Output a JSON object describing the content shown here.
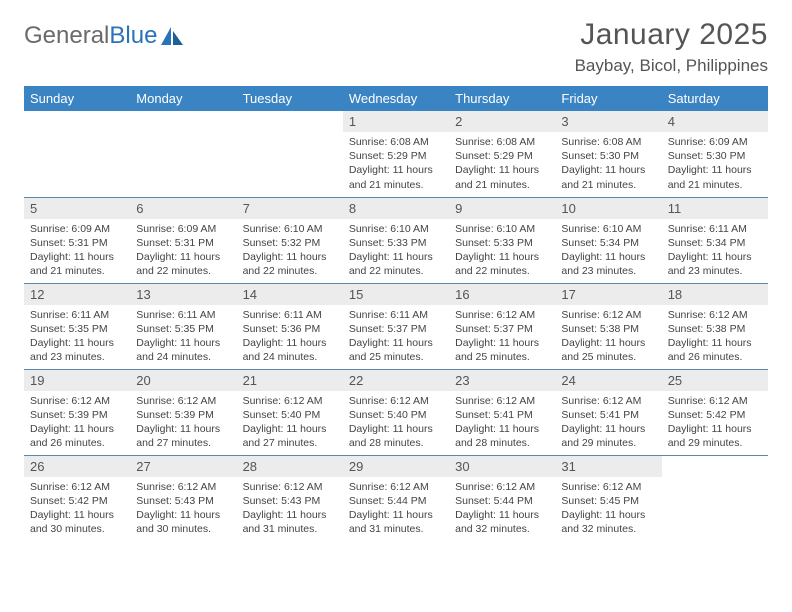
{
  "logo": {
    "text_gray": "General",
    "text_blue": "Blue"
  },
  "title": "January 2025",
  "location": "Baybay, Bicol, Philippines",
  "colors": {
    "header_bg": "#3b84c4",
    "header_text": "#ffffff",
    "daynum_bg": "#ececec",
    "border": "#5a87a8",
    "title_color": "#555555",
    "body_text": "#444444",
    "logo_gray": "#6a6a6a",
    "logo_blue": "#2a73b8",
    "page_bg": "#ffffff"
  },
  "typography": {
    "title_fontsize": 30,
    "location_fontsize": 17,
    "dayheader_fontsize": 13,
    "daynum_fontsize": 13,
    "body_fontsize": 10.5,
    "logo_fontsize": 24
  },
  "day_headers": [
    "Sunday",
    "Monday",
    "Tuesday",
    "Wednesday",
    "Thursday",
    "Friday",
    "Saturday"
  ],
  "weeks": [
    [
      {
        "empty": true
      },
      {
        "empty": true
      },
      {
        "empty": true
      },
      {
        "num": "1",
        "sunrise": "6:08 AM",
        "sunset": "5:29 PM",
        "daylight": "11 hours and 21 minutes."
      },
      {
        "num": "2",
        "sunrise": "6:08 AM",
        "sunset": "5:29 PM",
        "daylight": "11 hours and 21 minutes."
      },
      {
        "num": "3",
        "sunrise": "6:08 AM",
        "sunset": "5:30 PM",
        "daylight": "11 hours and 21 minutes."
      },
      {
        "num": "4",
        "sunrise": "6:09 AM",
        "sunset": "5:30 PM",
        "daylight": "11 hours and 21 minutes."
      }
    ],
    [
      {
        "num": "5",
        "sunrise": "6:09 AM",
        "sunset": "5:31 PM",
        "daylight": "11 hours and 21 minutes."
      },
      {
        "num": "6",
        "sunrise": "6:09 AM",
        "sunset": "5:31 PM",
        "daylight": "11 hours and 22 minutes."
      },
      {
        "num": "7",
        "sunrise": "6:10 AM",
        "sunset": "5:32 PM",
        "daylight": "11 hours and 22 minutes."
      },
      {
        "num": "8",
        "sunrise": "6:10 AM",
        "sunset": "5:33 PM",
        "daylight": "11 hours and 22 minutes."
      },
      {
        "num": "9",
        "sunrise": "6:10 AM",
        "sunset": "5:33 PM",
        "daylight": "11 hours and 22 minutes."
      },
      {
        "num": "10",
        "sunrise": "6:10 AM",
        "sunset": "5:34 PM",
        "daylight": "11 hours and 23 minutes."
      },
      {
        "num": "11",
        "sunrise": "6:11 AM",
        "sunset": "5:34 PM",
        "daylight": "11 hours and 23 minutes."
      }
    ],
    [
      {
        "num": "12",
        "sunrise": "6:11 AM",
        "sunset": "5:35 PM",
        "daylight": "11 hours and 23 minutes."
      },
      {
        "num": "13",
        "sunrise": "6:11 AM",
        "sunset": "5:35 PM",
        "daylight": "11 hours and 24 minutes."
      },
      {
        "num": "14",
        "sunrise": "6:11 AM",
        "sunset": "5:36 PM",
        "daylight": "11 hours and 24 minutes."
      },
      {
        "num": "15",
        "sunrise": "6:11 AM",
        "sunset": "5:37 PM",
        "daylight": "11 hours and 25 minutes."
      },
      {
        "num": "16",
        "sunrise": "6:12 AM",
        "sunset": "5:37 PM",
        "daylight": "11 hours and 25 minutes."
      },
      {
        "num": "17",
        "sunrise": "6:12 AM",
        "sunset": "5:38 PM",
        "daylight": "11 hours and 25 minutes."
      },
      {
        "num": "18",
        "sunrise": "6:12 AM",
        "sunset": "5:38 PM",
        "daylight": "11 hours and 26 minutes."
      }
    ],
    [
      {
        "num": "19",
        "sunrise": "6:12 AM",
        "sunset": "5:39 PM",
        "daylight": "11 hours and 26 minutes."
      },
      {
        "num": "20",
        "sunrise": "6:12 AM",
        "sunset": "5:39 PM",
        "daylight": "11 hours and 27 minutes."
      },
      {
        "num": "21",
        "sunrise": "6:12 AM",
        "sunset": "5:40 PM",
        "daylight": "11 hours and 27 minutes."
      },
      {
        "num": "22",
        "sunrise": "6:12 AM",
        "sunset": "5:40 PM",
        "daylight": "11 hours and 28 minutes."
      },
      {
        "num": "23",
        "sunrise": "6:12 AM",
        "sunset": "5:41 PM",
        "daylight": "11 hours and 28 minutes."
      },
      {
        "num": "24",
        "sunrise": "6:12 AM",
        "sunset": "5:41 PM",
        "daylight": "11 hours and 29 minutes."
      },
      {
        "num": "25",
        "sunrise": "6:12 AM",
        "sunset": "5:42 PM",
        "daylight": "11 hours and 29 minutes."
      }
    ],
    [
      {
        "num": "26",
        "sunrise": "6:12 AM",
        "sunset": "5:42 PM",
        "daylight": "11 hours and 30 minutes."
      },
      {
        "num": "27",
        "sunrise": "6:12 AM",
        "sunset": "5:43 PM",
        "daylight": "11 hours and 30 minutes."
      },
      {
        "num": "28",
        "sunrise": "6:12 AM",
        "sunset": "5:43 PM",
        "daylight": "11 hours and 31 minutes."
      },
      {
        "num": "29",
        "sunrise": "6:12 AM",
        "sunset": "5:44 PM",
        "daylight": "11 hours and 31 minutes."
      },
      {
        "num": "30",
        "sunrise": "6:12 AM",
        "sunset": "5:44 PM",
        "daylight": "11 hours and 32 minutes."
      },
      {
        "num": "31",
        "sunrise": "6:12 AM",
        "sunset": "5:45 PM",
        "daylight": "11 hours and 32 minutes."
      },
      {
        "empty": true
      }
    ]
  ],
  "labels": {
    "sunrise": "Sunrise: ",
    "sunset": "Sunset: ",
    "daylight": "Daylight: "
  }
}
